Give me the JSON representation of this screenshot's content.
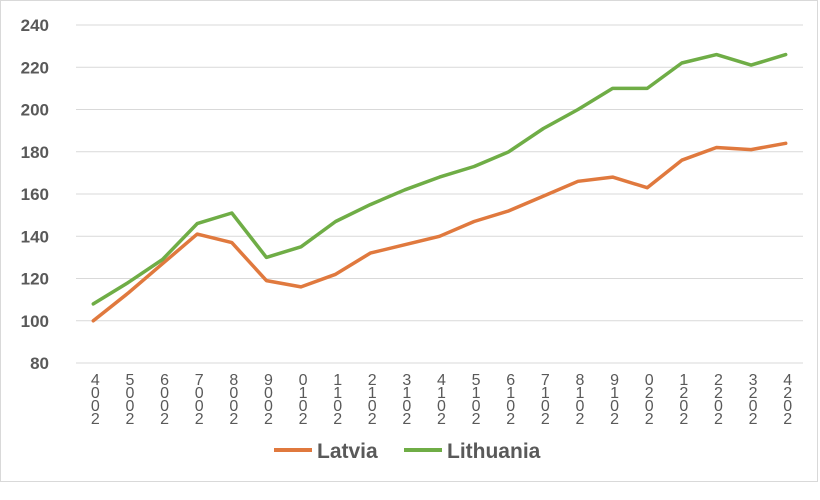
{
  "chart_data": {
    "type": "line",
    "categories": [
      "2004",
      "2005",
      "2006",
      "2007",
      "2008",
      "2009",
      "2010",
      "2011",
      "2012",
      "2013",
      "2014",
      "2015",
      "2016",
      "2017",
      "2018",
      "2019",
      "2020",
      "2021",
      "2022",
      "2023",
      "2024"
    ],
    "series": [
      {
        "name": "Latvia",
        "color": "#e0793e",
        "values": [
          100,
          113,
          127,
          141,
          137,
          119,
          116,
          122,
          132,
          136,
          140,
          147,
          152,
          159,
          166,
          168,
          163,
          176,
          182,
          181,
          184
        ]
      },
      {
        "name": "Lithuania",
        "color": "#6fad46",
        "values": [
          108,
          118,
          129,
          146,
          151,
          130,
          135,
          147,
          155,
          162,
          168,
          173,
          180,
          191,
          200,
          210,
          210,
          222,
          226,
          221,
          226
        ]
      }
    ],
    "yticks": [
      "80",
      "100",
      "120",
      "140",
      "160",
      "180",
      "200",
      "220",
      "240"
    ],
    "ylim": [
      80,
      240
    ],
    "grid": true,
    "legend": "bottom",
    "title": "",
    "xlabel": "",
    "ylabel": ""
  }
}
